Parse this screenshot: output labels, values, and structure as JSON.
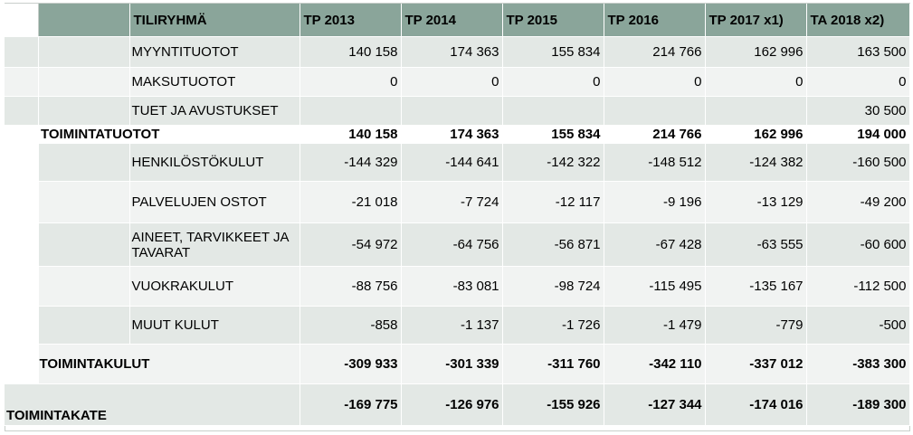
{
  "header": {
    "group": "TILIRYHMÄ",
    "years": [
      "TP 2013",
      "TP 2014",
      "TP 2015",
      "TP 2016",
      "TP 2017 x1)",
      "TA 2018 x2)"
    ]
  },
  "rows": [
    {
      "label": "MYYNTITUOTOT",
      "values": [
        "140 158",
        "174 363",
        "155 834",
        "214 766",
        "162 996",
        "163 500"
      ]
    },
    {
      "label": "MAKSUTUOTOT",
      "values": [
        "0",
        "0",
        "0",
        "0",
        "0",
        "0"
      ]
    },
    {
      "label": "TUET JA AVUSTUKSET",
      "values": [
        "",
        "",
        "",
        "",
        "",
        "30 500"
      ]
    },
    {
      "label": "TOIMINTATUOTOT",
      "values": [
        "140 158",
        "174 363",
        "155 834",
        "214 766",
        "162 996",
        "194 000"
      ]
    },
    {
      "label": "HENKILÖSTÖKULUT",
      "values": [
        "-144 329",
        "-144 641",
        "-142 322",
        "-148 512",
        "-124 382",
        "-160 500"
      ]
    },
    {
      "label": "PALVELUJEN OSTOT",
      "values": [
        "-21 018",
        "-7 724",
        "-12 117",
        "-9 196",
        "-13 129",
        "-49 200"
      ]
    },
    {
      "label": "AINEET, TARVIKKEET JA TAVARAT",
      "values": [
        "-54 972",
        "-64 756",
        "-56 871",
        "-67 428",
        "-63 555",
        "-60 600"
      ]
    },
    {
      "label": "VUOKRAKULUT",
      "values": [
        "-88 756",
        "-83 081",
        "-98 724",
        "-115 495",
        "-135 167",
        "-112 500"
      ]
    },
    {
      "label": "MUUT KULUT",
      "values": [
        "-858",
        "-1 137",
        "-1 726",
        "-1 479",
        "-779",
        "-500"
      ]
    },
    {
      "label": "TOIMINTAKULUT",
      "values": [
        "-309 933",
        "-301 339",
        "-311 760",
        "-342 110",
        "-337 012",
        "-383 300"
      ]
    },
    {
      "label": "TOIMINTAKATE",
      "values": [
        "-169 775",
        "-126 976",
        "-155 926",
        "-127 344",
        "-174 016",
        "-189 300"
      ]
    }
  ]
}
